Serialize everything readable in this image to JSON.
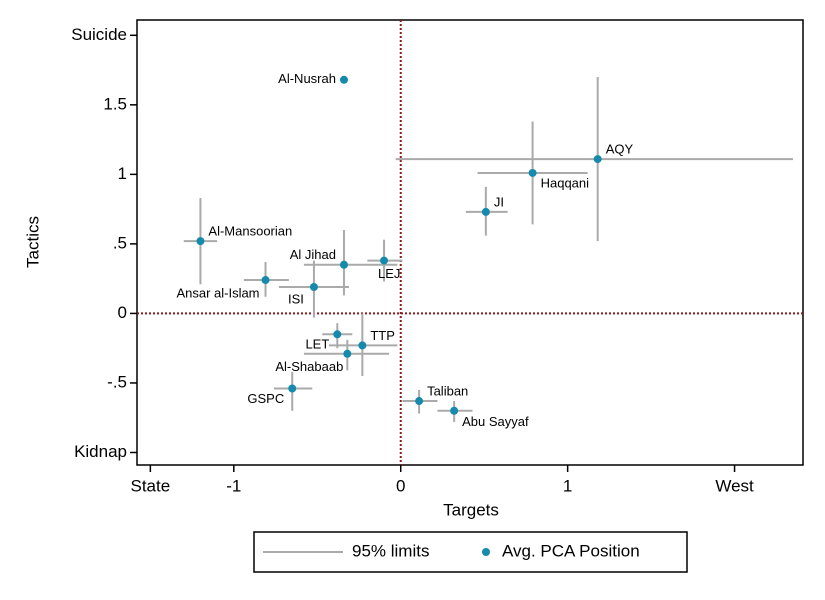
{
  "chart_data": {
    "type": "scatter-errorbar",
    "x_label": "Targets",
    "y_label": "Tactics",
    "xlim": [
      -1.58,
      2.41
    ],
    "ylim": [
      -1.09,
      2.11
    ],
    "xticks": [
      {
        "value": -1.5,
        "label": "State"
      },
      -1,
      0,
      1,
      {
        "value": 2,
        "label": "West"
      }
    ],
    "yticks": [
      {
        "value": -1,
        "label": "Kidnap"
      },
      {
        "value": -0.5,
        "label": "-.5"
      },
      0,
      {
        "value": 0.5,
        "label": ".5"
      },
      1,
      1.5,
      {
        "value": 2,
        "label": "Suicide"
      }
    ],
    "reference_lines": {
      "x": 0,
      "y": 0,
      "color": "#8b1a1a"
    },
    "errorbar_color": "#aaaaaa",
    "point_color": "#168aad",
    "legend": [
      {
        "label": "95% limits"
      },
      {
        "label": "Avg. PCA Position"
      }
    ],
    "points": [
      {
        "name": "Al-Nusrah",
        "x": -0.34,
        "y": 1.68
      },
      {
        "name": "AQY",
        "x": 1.18,
        "y": 1.11,
        "x_low": -0.03,
        "x_high": 2.35,
        "y_low": 0.52,
        "y_high": 1.7
      },
      {
        "name": "Haqqani",
        "x": 0.79,
        "y": 1.01,
        "x_low": 0.46,
        "x_high": 1.12,
        "y_low": 0.64,
        "y_high": 1.38
      },
      {
        "name": "JI",
        "x": 0.51,
        "y": 0.73,
        "x_low": 0.39,
        "x_high": 0.64,
        "y_low": 0.56,
        "y_high": 0.91
      },
      {
        "name": "Al-Mansoorian",
        "x": -1.2,
        "y": 0.52,
        "x_low": -1.3,
        "x_high": -1.1,
        "y_low": 0.21,
        "y_high": 0.83
      },
      {
        "name": "Al Jihad",
        "x": -0.34,
        "y": 0.35,
        "x_low": -0.58,
        "x_high": -0.02,
        "y_low": 0.13,
        "y_high": 0.6
      },
      {
        "name": "LEJ",
        "x": -0.1,
        "y": 0.38,
        "x_low": -0.2,
        "x_high": 0.01,
        "y_low": 0.23,
        "y_high": 0.53
      },
      {
        "name": "Ansar al-Islam",
        "x": -0.81,
        "y": 0.24,
        "x_low": -0.94,
        "x_high": -0.67,
        "y_low": 0.12,
        "y_high": 0.37
      },
      {
        "name": "ISI",
        "x": -0.52,
        "y": 0.19,
        "x_low": -0.73,
        "x_high": -0.31,
        "y_low": -0.03,
        "y_high": 0.38
      },
      {
        "name": "TTP",
        "x": -0.23,
        "y": -0.23,
        "x_low": -0.43,
        "x_high": -0.02,
        "y_low": -0.45,
        "y_high": 0.0
      },
      {
        "name": "LET",
        "x": -0.38,
        "y": -0.15,
        "x_low": -0.47,
        "x_high": -0.29,
        "y_low": -0.25,
        "y_high": -0.07
      },
      {
        "name": "Al-Shabaab",
        "x": -0.32,
        "y": -0.29,
        "x_low": -0.58,
        "x_high": -0.07,
        "y_low": -0.41,
        "y_high": -0.19
      },
      {
        "name": "GSPC",
        "x": -0.65,
        "y": -0.54,
        "x_low": -0.76,
        "x_high": -0.53,
        "y_low": -0.7,
        "y_high": -0.42
      },
      {
        "name": "Taliban",
        "x": 0.11,
        "y": -0.63,
        "x_low": 0.01,
        "x_high": 0.22,
        "y_low": -0.72,
        "y_high": -0.55
      },
      {
        "name": "Abu Sayyaf",
        "x": 0.32,
        "y": -0.7,
        "x_low": 0.22,
        "x_high": 0.43,
        "y_low": -0.78,
        "y_high": -0.63
      }
    ]
  }
}
